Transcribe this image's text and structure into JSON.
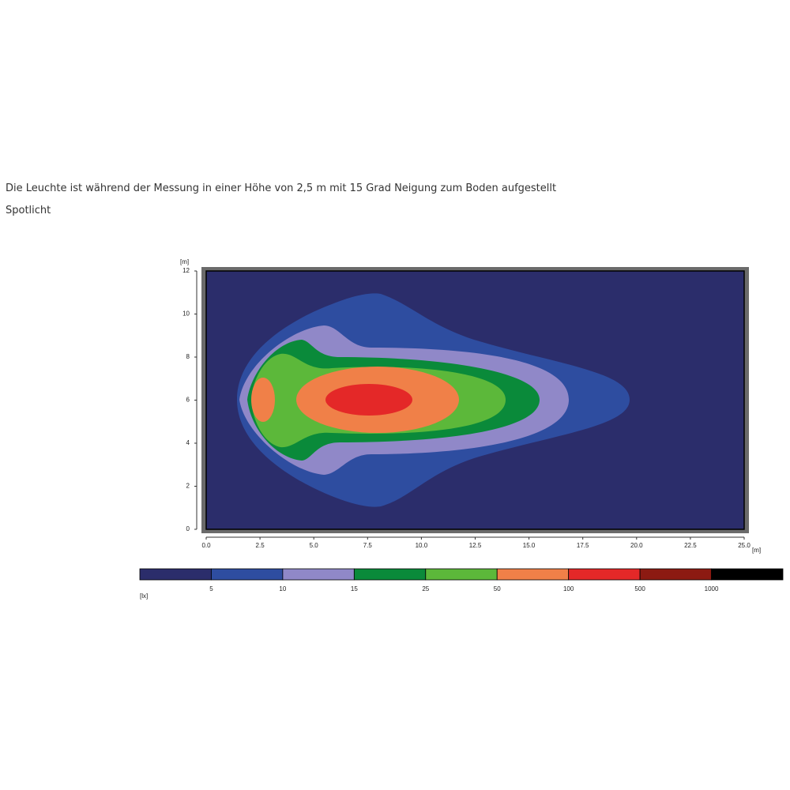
{
  "chart_data": {
    "type": "contour",
    "title": "Die Leuchte ist während der Messung in einer Höhe von 2,5 m mit 15 Grad Neigung zum Boden aufgestellt",
    "subtitle": "Spotlicht",
    "x_label": "[m]",
    "y_label": "[m]",
    "xlim": [
      0,
      25
    ],
    "ylim": [
      0,
      12
    ],
    "xticks": [
      {
        "value": 0,
        "label": "0.0"
      },
      {
        "value": 2.5,
        "label": "2.5"
      },
      {
        "value": 5,
        "label": "5.0"
      },
      {
        "value": 7.5,
        "label": "7.5"
      },
      {
        "value": 10,
        "label": "10.0"
      },
      {
        "value": 12.5,
        "label": "12.5"
      },
      {
        "value": 15,
        "label": "15.0"
      },
      {
        "value": 17.5,
        "label": "17.5"
      },
      {
        "value": 20,
        "label": "20.0"
      },
      {
        "value": 22.5,
        "label": "22.5"
      },
      {
        "value": 25,
        "label": "25.0"
      }
    ],
    "yticks": [
      0,
      2,
      4,
      6,
      8,
      10,
      12
    ],
    "legend": {
      "title": "[lx]",
      "levels": [
        5,
        10,
        15,
        25,
        50,
        100,
        500,
        1000
      ],
      "colors": [
        "#2b2d6b",
        "#2e4da0",
        "#9088c8",
        "#0a8a3a",
        "#5cb83a",
        "#f08048",
        "#e42828",
        "#8c1a12",
        "#000000"
      ]
    }
  }
}
